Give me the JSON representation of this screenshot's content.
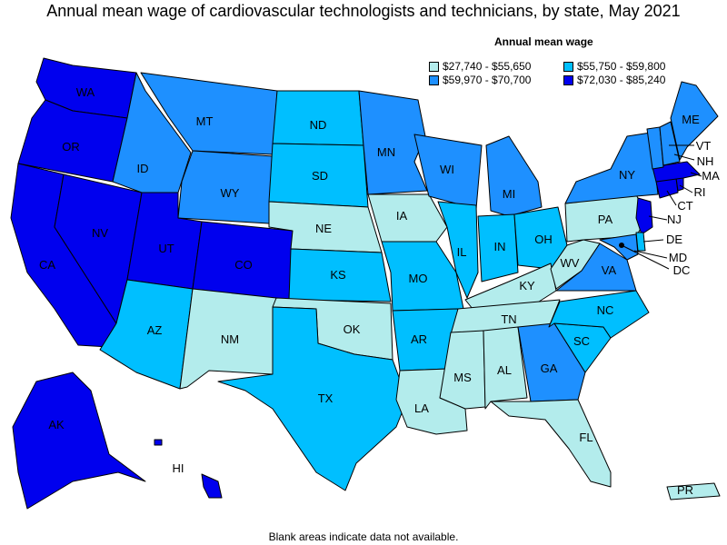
{
  "title": "Annual mean wage of cardiovascular technologists and technicians, by state, May 2021",
  "legend": {
    "title": "Annual mean wage",
    "items": [
      {
        "label": "$27,740 - $55,650",
        "color": "#b3ecec"
      },
      {
        "label": "$55,750 - $59,800",
        "color": "#00bfff"
      },
      {
        "label": "$59,970 - $70,700",
        "color": "#1e90ff"
      },
      {
        "label": "$72,030 - $85,240",
        "color": "#0000ee"
      }
    ]
  },
  "footnote": "Blank areas indicate data not available.",
  "states": [
    {
      "abbr": "WA",
      "bin": 3
    },
    {
      "abbr": "OR",
      "bin": 3
    },
    {
      "abbr": "CA",
      "bin": 3
    },
    {
      "abbr": "NV",
      "bin": 3
    },
    {
      "abbr": "UT",
      "bin": 3
    },
    {
      "abbr": "CO",
      "bin": 3
    },
    {
      "abbr": "AK",
      "bin": 3
    },
    {
      "abbr": "HI",
      "bin": 3
    },
    {
      "abbr": "NJ",
      "bin": 3
    },
    {
      "abbr": "CT",
      "bin": 3
    },
    {
      "abbr": "MA",
      "bin": 3
    },
    {
      "abbr": "RI",
      "bin": 3
    },
    {
      "abbr": "MT",
      "bin": 2
    },
    {
      "abbr": "ID",
      "bin": 2
    },
    {
      "abbr": "WY",
      "bin": 2
    },
    {
      "abbr": "MN",
      "bin": 2
    },
    {
      "abbr": "WI",
      "bin": 2
    },
    {
      "abbr": "MI",
      "bin": 2
    },
    {
      "abbr": "NY",
      "bin": 2
    },
    {
      "abbr": "ME",
      "bin": 2
    },
    {
      "abbr": "VT",
      "bin": 2
    },
    {
      "abbr": "NH",
      "bin": 2
    },
    {
      "abbr": "VA",
      "bin": 2
    },
    {
      "abbr": "GA",
      "bin": 2
    },
    {
      "abbr": "MD",
      "bin": 2
    },
    {
      "abbr": "DC",
      "bin": 2
    },
    {
      "abbr": "ND",
      "bin": 1
    },
    {
      "abbr": "SD",
      "bin": 1
    },
    {
      "abbr": "KS",
      "bin": 1
    },
    {
      "abbr": "MO",
      "bin": 1
    },
    {
      "abbr": "IL",
      "bin": 1
    },
    {
      "abbr": "IN",
      "bin": 1
    },
    {
      "abbr": "OH",
      "bin": 1
    },
    {
      "abbr": "AZ",
      "bin": 1
    },
    {
      "abbr": "TX",
      "bin": 1
    },
    {
      "abbr": "AR",
      "bin": 1
    },
    {
      "abbr": "NC",
      "bin": 1
    },
    {
      "abbr": "SC",
      "bin": 1
    },
    {
      "abbr": "DE",
      "bin": 1
    },
    {
      "abbr": "NE",
      "bin": 0
    },
    {
      "abbr": "IA",
      "bin": 0
    },
    {
      "abbr": "NM",
      "bin": 0
    },
    {
      "abbr": "OK",
      "bin": 0
    },
    {
      "abbr": "KY",
      "bin": 0
    },
    {
      "abbr": "TN",
      "bin": 0
    },
    {
      "abbr": "MS",
      "bin": 0
    },
    {
      "abbr": "AL",
      "bin": 0
    },
    {
      "abbr": "LA",
      "bin": 0
    },
    {
      "abbr": "FL",
      "bin": 0
    },
    {
      "abbr": "PA",
      "bin": 0
    },
    {
      "abbr": "WV",
      "bin": 0
    },
    {
      "abbr": "PR",
      "bin": 0
    }
  ]
}
